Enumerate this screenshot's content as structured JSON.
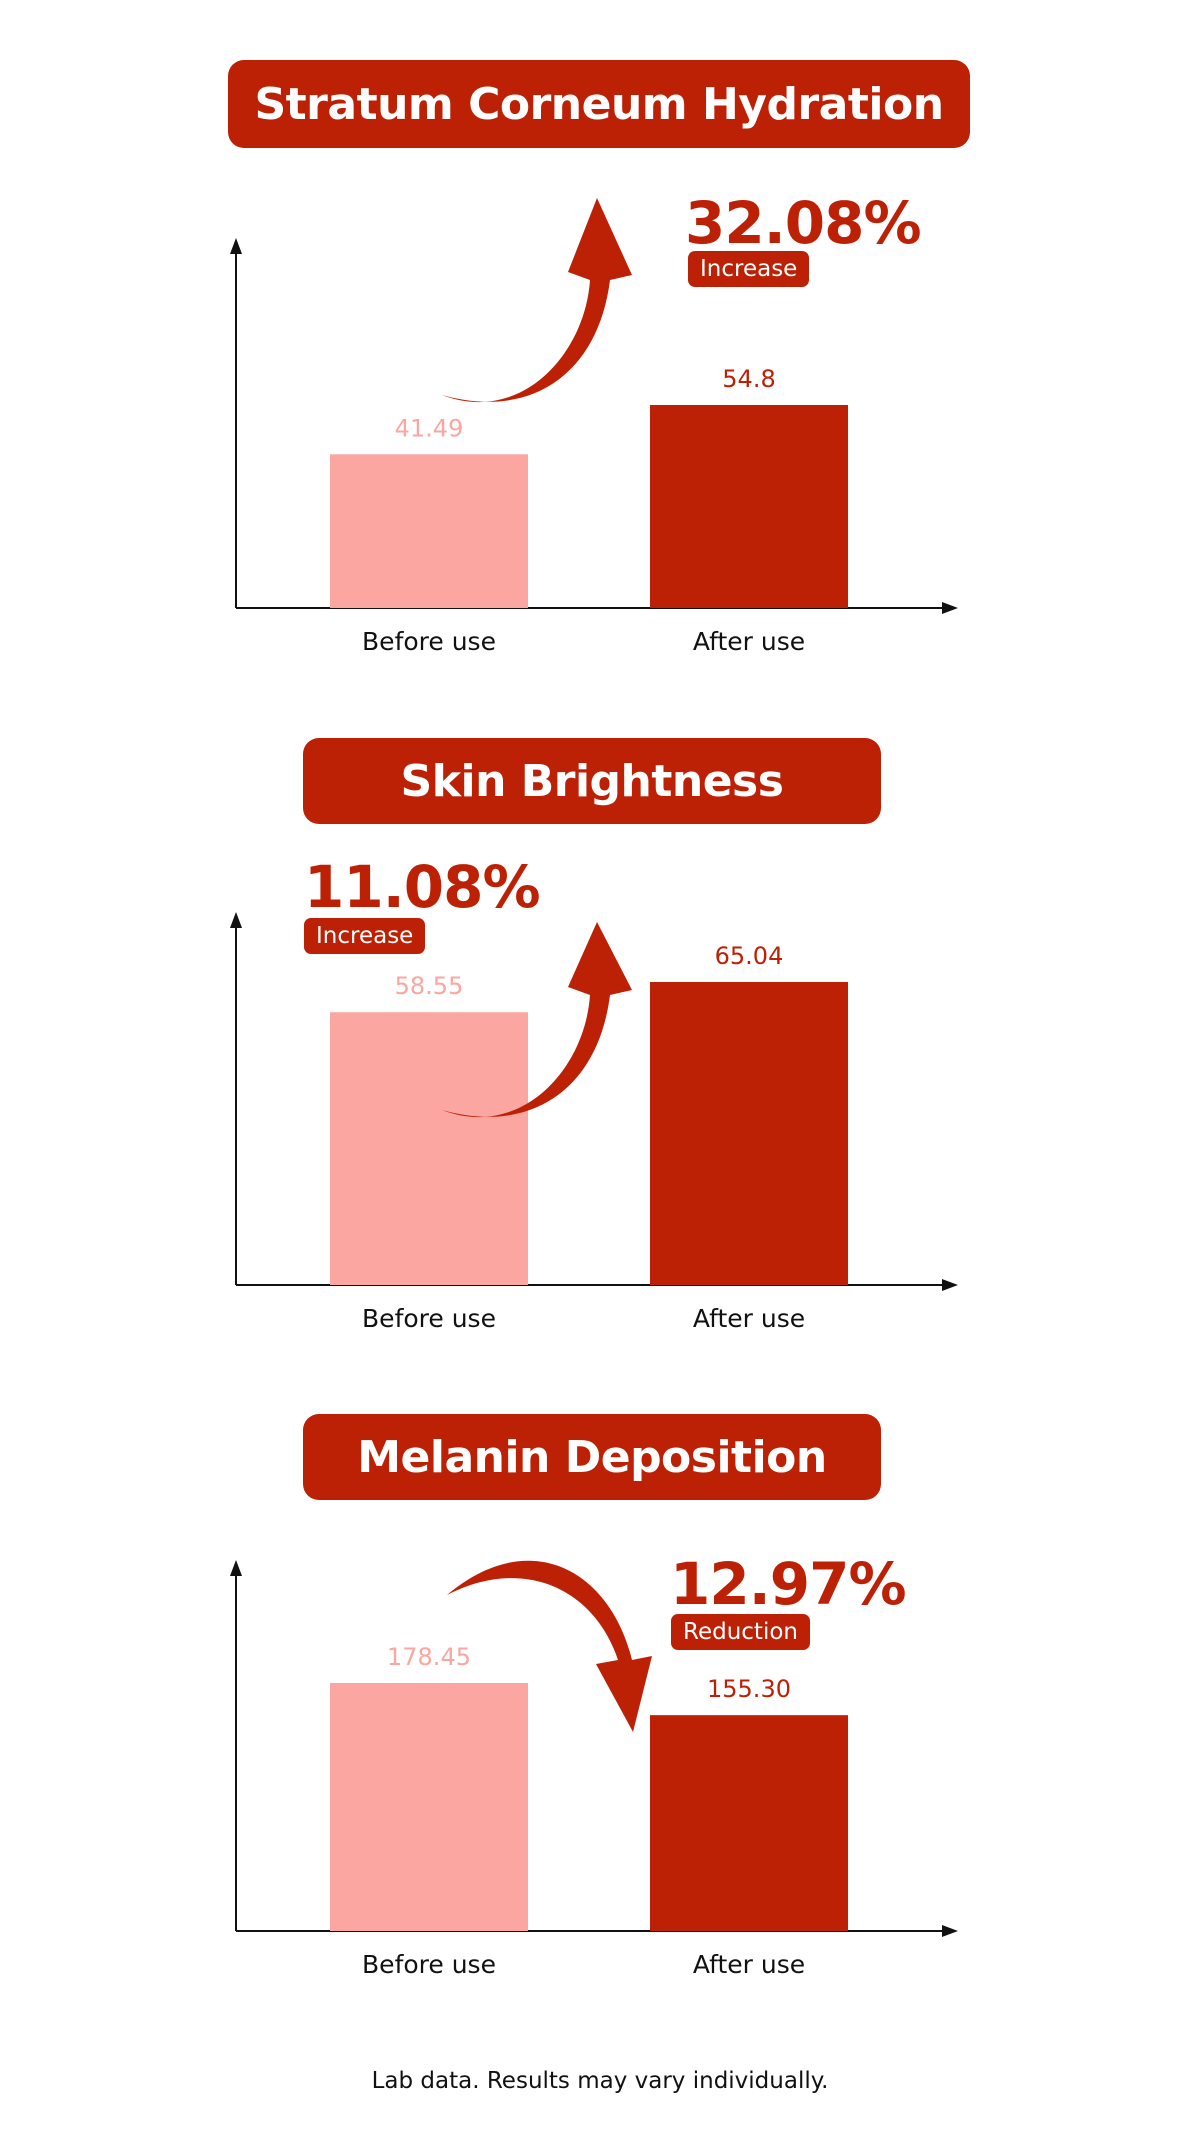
{
  "colors": {
    "before": "#fba6a0",
    "after": "#bc2106",
    "axis": "#111111"
  },
  "footnote": "Lab data. Results may vary individually.",
  "chart_data": [
    {
      "type": "bar",
      "title": "Stratum Corneum Hydration",
      "categories": [
        "Before use",
        "After use"
      ],
      "values": [
        41.49,
        54.8
      ],
      "value_labels": [
        "41.49",
        "54.8"
      ],
      "change": {
        "value": "32.08%",
        "label": "Increase",
        "direction": "up"
      }
    },
    {
      "type": "bar",
      "title": "Skin Brightness",
      "categories": [
        "Before use",
        "After use"
      ],
      "values": [
        58.55,
        65.04
      ],
      "value_labels": [
        "58.55",
        "65.04"
      ],
      "change": {
        "value": "11.08%",
        "label": "Increase",
        "direction": "up"
      }
    },
    {
      "type": "bar",
      "title": "Melanin Deposition",
      "categories": [
        "Before use",
        "After use"
      ],
      "values": [
        178.45,
        155.3
      ],
      "value_labels": [
        "178.45",
        "155.30"
      ],
      "change": {
        "value": "12.97%",
        "label": "Reduction",
        "direction": "down"
      }
    }
  ]
}
